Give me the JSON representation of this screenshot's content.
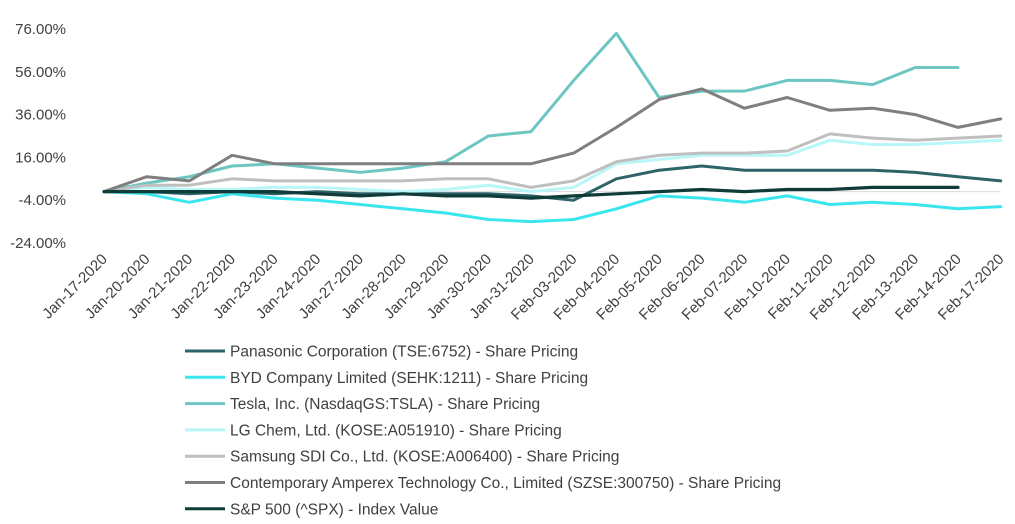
{
  "chart_data": {
    "type": "line",
    "title": "",
    "xlabel": "",
    "ylabel": "",
    "ylim": [
      -24,
      76
    ],
    "y_ticks": [
      "76.00%",
      "56.00%",
      "36.00%",
      "16.00%",
      "-4.00%",
      "-24.00%"
    ],
    "categories": [
      "Jan-17-2020",
      "Jan-20-2020",
      "Jan-21-2020",
      "Jan-22-2020",
      "Jan-23-2020",
      "Jan-24-2020",
      "Jan-27-2020",
      "Jan-28-2020",
      "Jan-29-2020",
      "Jan-30-2020",
      "Jan-31-2020",
      "Feb-03-2020",
      "Feb-04-2020",
      "Feb-05-2020",
      "Feb-06-2020",
      "Feb-07-2020",
      "Feb-10-2020",
      "Feb-11-2020",
      "Feb-12-2020",
      "Feb-13-2020",
      "Feb-14-2020",
      "Feb-17-2020"
    ],
    "grid": false,
    "legend_position": "bottom",
    "series": [
      {
        "name": "Panasonic Corporation (TSE:6752) - Share Pricing",
        "color": "#2e6467",
        "values": [
          0,
          0,
          -1,
          0,
          -1,
          0,
          -1,
          -1,
          -1,
          -1,
          -2,
          -4,
          6,
          10,
          12,
          10,
          10,
          10,
          10,
          9,
          7,
          5
        ]
      },
      {
        "name": "BYD Company Limited (SEHK:1211) - Share Pricing",
        "color": "#3ae6ee",
        "values": [
          0,
          -1,
          -5,
          -1,
          -3,
          -4,
          -6,
          -8,
          -10,
          -13,
          -14,
          -13,
          -8,
          -2,
          -3,
          -5,
          -2,
          -6,
          -5,
          -6,
          -8,
          -7
        ]
      },
      {
        "name": "Tesla, Inc. (NasdaqGS:TSLA) - Share Pricing",
        "color": "#6dc6c2",
        "values": [
          0,
          4,
          7,
          12,
          13,
          11,
          9,
          11,
          14,
          26,
          28,
          52,
          74,
          44,
          47,
          47,
          52,
          52,
          50,
          58,
          58,
          null
        ]
      },
      {
        "name": "LG Chem, Ltd. (KOSE:A051910) - Share Pricing",
        "color": "#b9f6f8",
        "values": [
          0,
          2,
          1,
          1,
          2,
          2,
          1,
          0,
          1,
          3,
          0,
          2,
          13,
          15,
          17,
          17,
          17,
          24,
          22,
          22,
          23,
          24
        ]
      },
      {
        "name": "Samsung SDI Co., Ltd. (KOSE:A006400) - Share Pricing",
        "color": "#bfbfbf",
        "values": [
          0,
          3,
          3,
          6,
          5,
          5,
          5,
          5,
          6,
          6,
          2,
          5,
          14,
          17,
          18,
          18,
          19,
          27,
          25,
          24,
          25,
          26
        ]
      },
      {
        "name": "Contemporary Amperex Technology Co., Limited (SZSE:300750) - Share Pricing",
        "color": "#7f7f7f",
        "values": [
          0,
          7,
          5,
          17,
          13,
          13,
          13,
          13,
          13,
          13,
          13,
          18,
          30,
          43,
          48,
          39,
          44,
          38,
          39,
          36,
          30,
          34
        ]
      },
      {
        "name": "S&P 500 (^SPX) - Index Value",
        "color": "#0f3b39",
        "values": [
          0,
          0,
          0,
          0,
          0,
          -1,
          -2,
          -1,
          -2,
          -2,
          -3,
          -2,
          -1,
          0,
          1,
          0,
          1,
          1,
          2,
          2,
          2,
          null
        ]
      }
    ]
  }
}
